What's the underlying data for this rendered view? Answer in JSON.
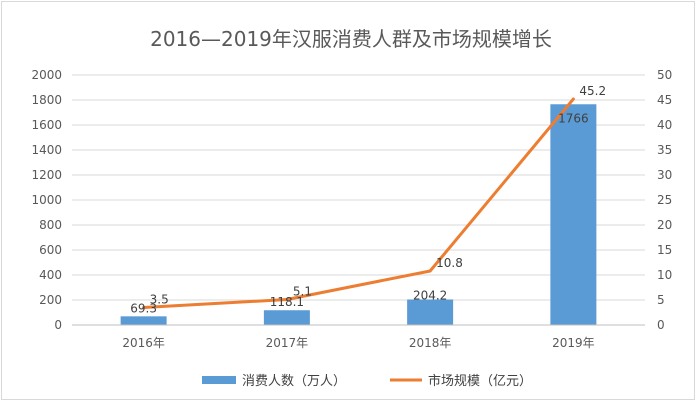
{
  "chart_data": {
    "type": "bar",
    "title": "2016—2019年汉服消费人群及市场规模增长",
    "categories": [
      "2016年",
      "2017年",
      "2018年",
      "2019年"
    ],
    "series": [
      {
        "name": "消费人数（万人）",
        "type": "bar",
        "axis": "left",
        "color": "#5b9bd5",
        "values": [
          69.3,
          118.1,
          204.2,
          1766
        ],
        "labels": [
          "69.3",
          "118.1",
          "204.2",
          "1766"
        ]
      },
      {
        "name": "市场规模（亿元）",
        "type": "line",
        "axis": "right",
        "color": "#ed7d31",
        "values": [
          3.5,
          5.1,
          10.8,
          45.2
        ],
        "labels": [
          "3.5",
          "5.1",
          "10.8",
          "45.2"
        ]
      }
    ],
    "y_left": {
      "range": [
        0,
        2000
      ],
      "ticks": [
        "0",
        "200",
        "400",
        "600",
        "800",
        "1000",
        "1200",
        "1400",
        "1600",
        "1800",
        "2000"
      ]
    },
    "y_right": {
      "range": [
        0,
        50
      ],
      "ticks": [
        "0",
        "5",
        "10",
        "15",
        "20",
        "25",
        "30",
        "35",
        "40",
        "45",
        "50"
      ]
    },
    "grid": true,
    "legend_position": "bottom"
  }
}
